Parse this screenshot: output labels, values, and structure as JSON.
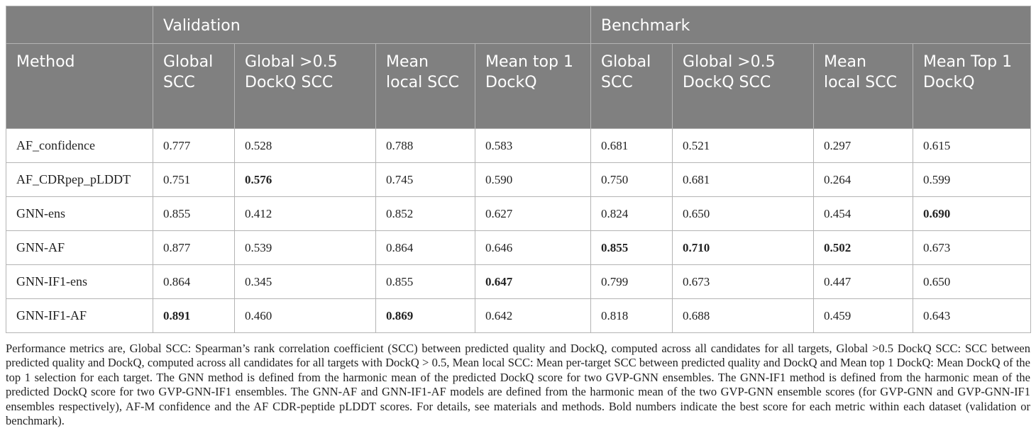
{
  "table": {
    "group_headers": [
      "",
      "Validation",
      "Benchmark"
    ],
    "columns": [
      "Method",
      "Global SCC",
      "Global >0.5 DockQ SCC",
      "Mean local SCC",
      "Mean top 1 DockQ",
      "Global SCC",
      "Global >0.5 DockQ SCC",
      "Mean local SCC",
      "Mean Top 1 DockQ"
    ],
    "rows": [
      {
        "method": "AF_confidence",
        "values": [
          "0.777",
          "0.528",
          "0.788",
          "0.583",
          "0.681",
          "0.521",
          "0.297",
          "0.615"
        ],
        "bold": []
      },
      {
        "method": "AF_CDRpep_pLDDT",
        "values": [
          "0.751",
          "0.576",
          "0.745",
          "0.590",
          "0.750",
          "0.681",
          "0.264",
          "0.599"
        ],
        "bold": [
          1
        ]
      },
      {
        "method": "GNN-ens",
        "values": [
          "0.855",
          "0.412",
          "0.852",
          "0.627",
          "0.824",
          "0.650",
          "0.454",
          "0.690"
        ],
        "bold": [
          7
        ]
      },
      {
        "method": "GNN-AF",
        "values": [
          "0.877",
          "0.539",
          "0.864",
          "0.646",
          "0.855",
          "0.710",
          "0.502",
          "0.673"
        ],
        "bold": [
          4,
          5,
          6
        ]
      },
      {
        "method": "GNN-IF1-ens",
        "values": [
          "0.864",
          "0.345",
          "0.855",
          "0.647",
          "0.799",
          "0.673",
          "0.447",
          "0.650"
        ],
        "bold": [
          3
        ]
      },
      {
        "method": "GNN-IF1-AF",
        "values": [
          "0.891",
          "0.460",
          "0.869",
          "0.642",
          "0.818",
          "0.688",
          "0.459",
          "0.643"
        ],
        "bold": [
          0,
          2
        ]
      }
    ]
  },
  "footnote": "Performance metrics are, Global SCC: Spearman’s rank correlation coefficient (SCC) between predicted quality and DockQ, computed across all candidates for all targets, Global >0.5 DockQ SCC: SCC between predicted quality and DockQ, computed across all candidates for all targets with DockQ > 0.5, Mean local SCC: Mean per-target SCC between predicted quality and DockQ and Mean top 1 DockQ: Mean DockQ of the top 1 selection for each target. The GNN method is defined from the harmonic mean of the predicted DockQ score for two GVP-GNN ensembles. The GNN-IF1 method is defined from the harmonic mean of the predicted DockQ score for two GVP-GNN-IF1 ensembles. The GNN-AF and GNN-IF1-AF models are defined from the harmonic mean of the two GVP-GNN ensemble scores (for GVP-GNN and GVP-GNN-IF1 ensembles respectively), AF-M confidence and the AF CDR-peptide pLDDT scores. For details, see materials and methods. Bold numbers indicate the best score for each metric within each dataset (validation or benchmark).",
  "colors": {
    "header_bg": "#808080",
    "header_text": "#ffffff",
    "grid_line": "#b4b4b4",
    "body_text": "#222222"
  }
}
